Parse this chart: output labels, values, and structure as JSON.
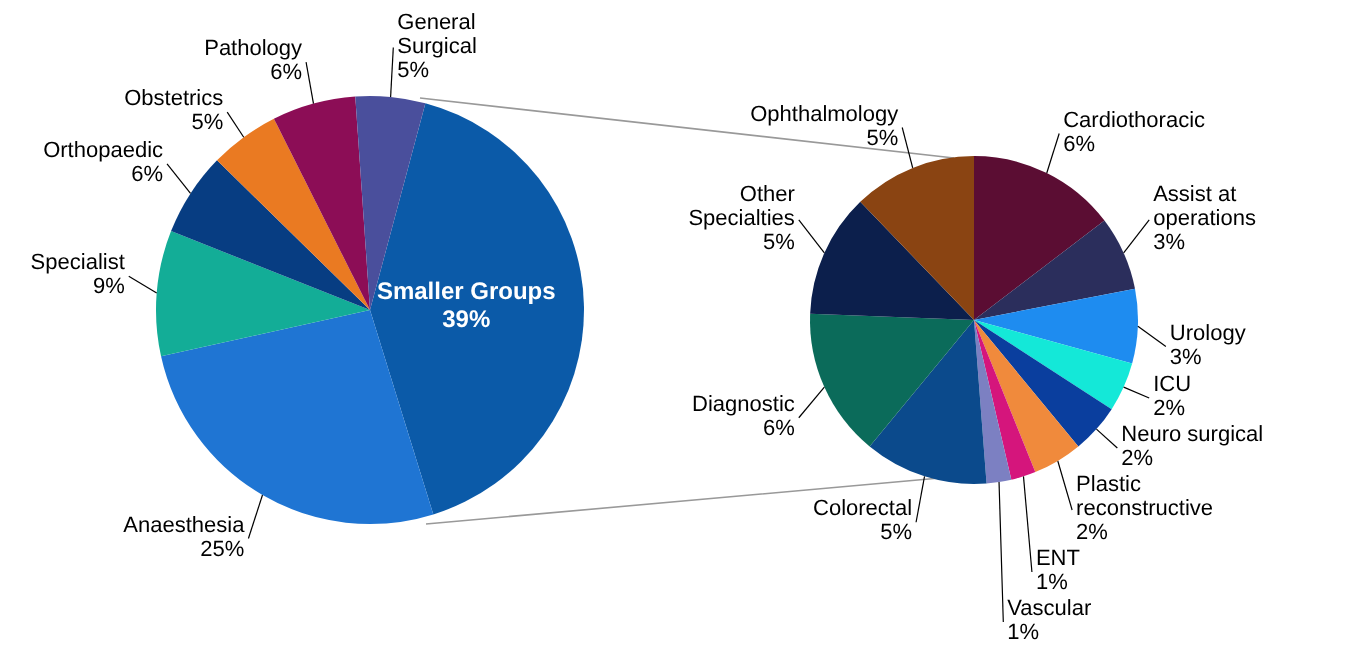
{
  "chart_data": [
    {
      "type": "pie",
      "categories": [
        "Smaller Groups",
        "Anaesthesia",
        "Specialist",
        "Orthopaedic",
        "Obstetrics",
        "Pathology",
        "General Surgical"
      ],
      "values": [
        39,
        25,
        9,
        6,
        5,
        6,
        5
      ],
      "value_labels": [
        "39%",
        "25%",
        "9%",
        "6%",
        "5%",
        "6%",
        "5%"
      ],
      "colors": [
        "#0b5aa8",
        "#1f75d3",
        "#13ad97",
        "#073d82",
        "#ea7a22",
        "#8c0d56",
        "#4a4f9c"
      ],
      "legend": false
    },
    {
      "type": "pie",
      "categories": [
        "Cardiothoracic",
        "Assist at operations",
        "Urology",
        "ICU",
        "Neuro surgical",
        "Plastic reconstructive",
        "ENT",
        "Vascular",
        "Colorectal",
        "Diagnostic",
        "Other Specialties",
        "Ophthalmology"
      ],
      "values": [
        6,
        3,
        3,
        2,
        2,
        2,
        1,
        1,
        5,
        6,
        5,
        5
      ],
      "value_labels": [
        "6%",
        "3%",
        "3%",
        "2%",
        "2%",
        "2%",
        "1%",
        "1%",
        "5%",
        "6%",
        "5%",
        "5%"
      ],
      "colors": [
        "#5b0d33",
        "#2b2e5c",
        "#1e8cf0",
        "#14e8d8",
        "#0a3e9e",
        "#f08a3c",
        "#d5157c",
        "#7c80c2",
        "#0b4a8c",
        "#0b6b5a",
        "#0c1f4c",
        "#8a4412"
      ],
      "legend": false
    }
  ]
}
